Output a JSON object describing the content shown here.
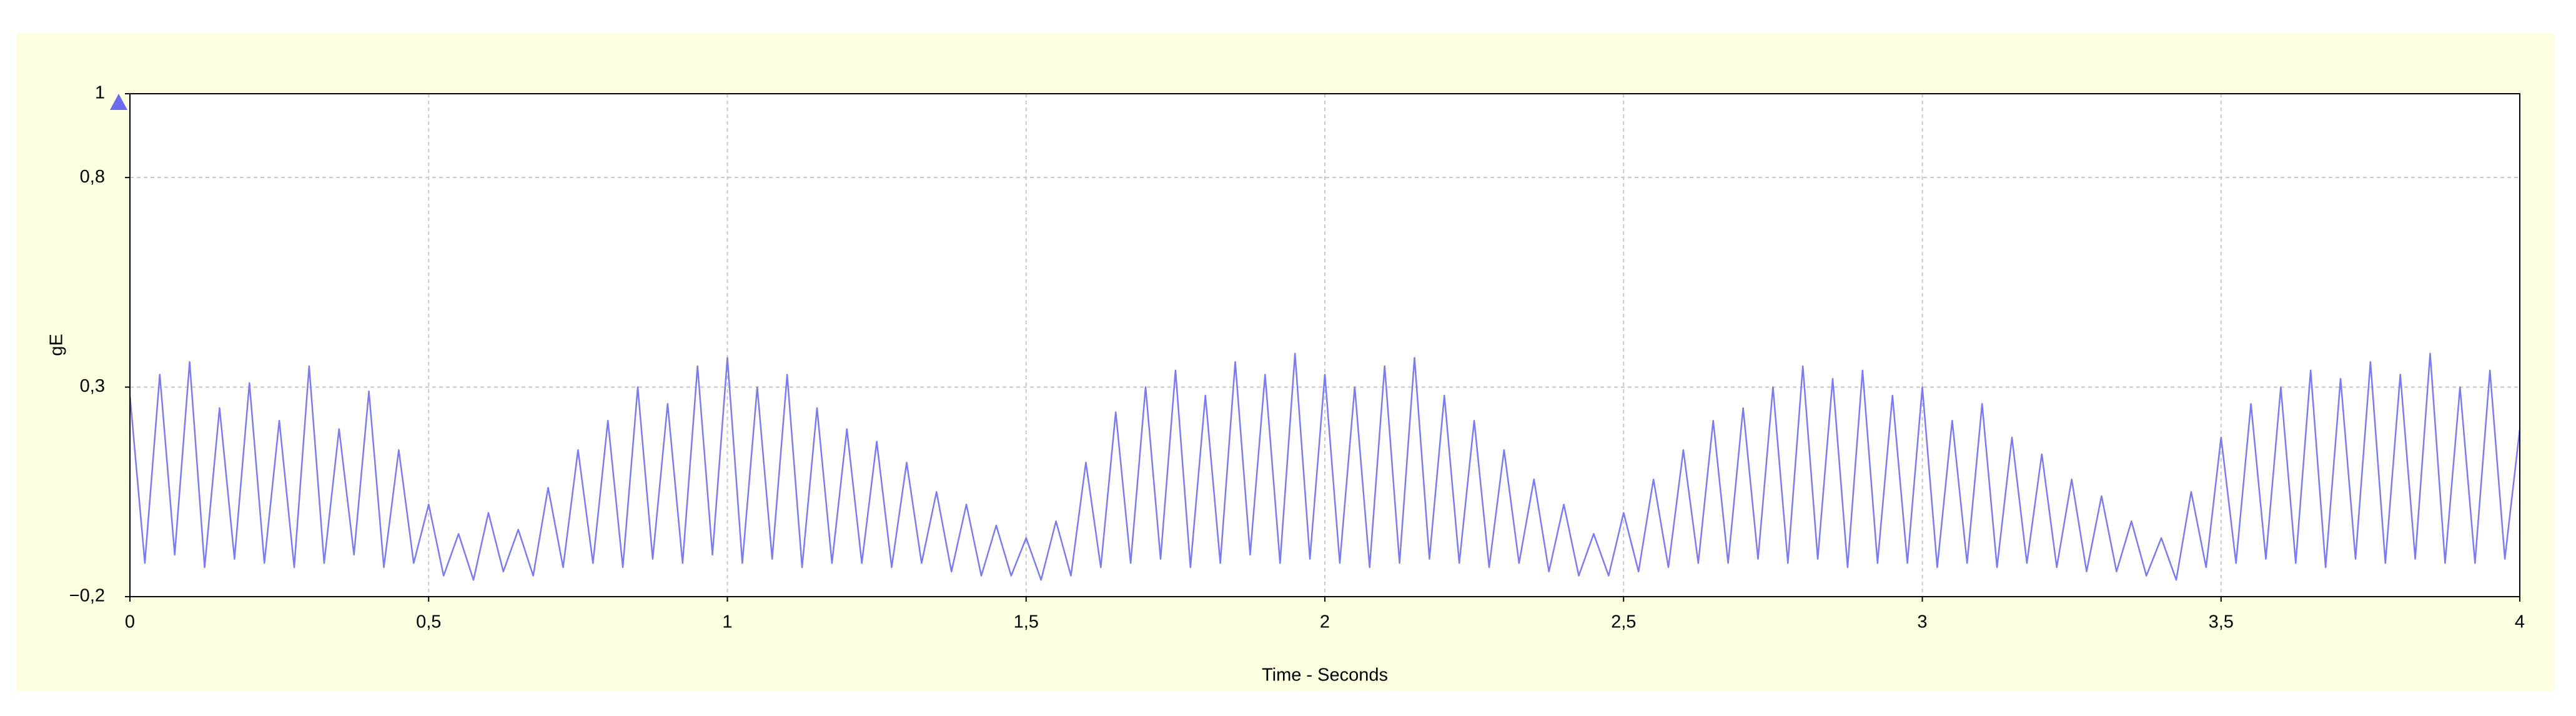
{
  "chart_data": {
    "type": "line",
    "x_label": "Time - Seconds",
    "y_label": "gE",
    "xlim": [
      0,
      4
    ],
    "ylim": [
      -0.2,
      1
    ],
    "xticks": [
      0,
      {
        "value": 0.5,
        "label": "0,5"
      },
      1,
      {
        "value": 1.5,
        "label": "1,5"
      },
      2,
      {
        "value": 2.5,
        "label": "2,5"
      },
      3,
      {
        "value": 3.5,
        "label": "3,5"
      },
      4
    ],
    "yticks": [
      {
        "value": -0.2,
        "label": "−0,2"
      },
      {
        "value": 0.3,
        "label": "0,3"
      },
      {
        "value": 0.8,
        "label": "0,8"
      },
      1
    ],
    "grid": true,
    "x": [
      0,
      0.025,
      0.05,
      0.075,
      0.1,
      0.125,
      0.15,
      0.175,
      0.2,
      0.225,
      0.25,
      0.275,
      0.3,
      0.325,
      0.35,
      0.375,
      0.4,
      0.425,
      0.45,
      0.475,
      0.5,
      0.525,
      0.55,
      0.575,
      0.6,
      0.625,
      0.65,
      0.675,
      0.7,
      0.725,
      0.75,
      0.775,
      0.8,
      0.825,
      0.85,
      0.875,
      0.9,
      0.925,
      0.95,
      0.975,
      1,
      1.025,
      1.05,
      1.075,
      1.1,
      1.125,
      1.15,
      1.175,
      1.2,
      1.225,
      1.25,
      1.275,
      1.3,
      1.325,
      1.35,
      1.375,
      1.4,
      1.425,
      1.45,
      1.475,
      1.5,
      1.525,
      1.55,
      1.575,
      1.6,
      1.625,
      1.65,
      1.675,
      1.7,
      1.725,
      1.75,
      1.775,
      1.8,
      1.825,
      1.85,
      1.875,
      1.9,
      1.925,
      1.95,
      1.975,
      2,
      2.025,
      2.05,
      2.075,
      2.1,
      2.125,
      2.15,
      2.175,
      2.2,
      2.225,
      2.25,
      2.275,
      2.3,
      2.325,
      2.35,
      2.375,
      2.4,
      2.425,
      2.45,
      2.475,
      2.5,
      2.525,
      2.55,
      2.575,
      2.6,
      2.625,
      2.65,
      2.675,
      2.7,
      2.725,
      2.75,
      2.775,
      2.8,
      2.825,
      2.85,
      2.875,
      2.9,
      2.925,
      2.95,
      2.975,
      3,
      3.025,
      3.05,
      3.075,
      3.1,
      3.125,
      3.15,
      3.175,
      3.2,
      3.225,
      3.25,
      3.275,
      3.3,
      3.325,
      3.35,
      3.375,
      3.4,
      3.425,
      3.45,
      3.475,
      3.5,
      3.525,
      3.55,
      3.575,
      3.6,
      3.625,
      3.65,
      3.675,
      3.7,
      3.725,
      3.75,
      3.775,
      3.8,
      3.825,
      3.85,
      3.875,
      3.9,
      3.925,
      3.95,
      3.975,
      4
    ],
    "series": [
      {
        "color": "#7b7bf0",
        "values": [
          0.28,
          -0.12,
          0.33,
          -0.1,
          0.36,
          -0.13,
          0.25,
          -0.11,
          0.31,
          -0.12,
          0.22,
          -0.13,
          0.35,
          -0.12,
          0.2,
          -0.1,
          0.29,
          -0.13,
          0.15,
          -0.12,
          0.02,
          -0.15,
          -0.05,
          -0.16,
          0.0,
          -0.14,
          -0.04,
          -0.15,
          0.06,
          -0.13,
          0.15,
          -0.12,
          0.22,
          -0.13,
          0.3,
          -0.11,
          0.26,
          -0.12,
          0.35,
          -0.1,
          0.37,
          -0.12,
          0.3,
          -0.11,
          0.33,
          -0.13,
          0.25,
          -0.12,
          0.2,
          -0.12,
          0.17,
          -0.13,
          0.12,
          -0.12,
          0.05,
          -0.14,
          0.02,
          -0.15,
          -0.03,
          -0.15,
          -0.06,
          -0.16,
          -0.02,
          -0.15,
          0.12,
          -0.13,
          0.24,
          -0.12,
          0.3,
          -0.11,
          0.34,
          -0.13,
          0.28,
          -0.12,
          0.36,
          -0.1,
          0.33,
          -0.12,
          0.38,
          -0.11,
          0.33,
          -0.12,
          0.3,
          -0.13,
          0.35,
          -0.12,
          0.37,
          -0.11,
          0.28,
          -0.12,
          0.22,
          -0.13,
          0.15,
          -0.12,
          0.08,
          -0.14,
          0.02,
          -0.15,
          -0.05,
          -0.15,
          0.0,
          -0.14,
          0.08,
          -0.13,
          0.15,
          -0.12,
          0.22,
          -0.12,
          0.25,
          -0.11,
          0.3,
          -0.12,
          0.35,
          -0.11,
          0.32,
          -0.13,
          0.34,
          -0.12,
          0.28,
          -0.12,
          0.3,
          -0.13,
          0.22,
          -0.12,
          0.26,
          -0.13,
          0.18,
          -0.12,
          0.14,
          -0.13,
          0.08,
          -0.14,
          0.04,
          -0.14,
          -0.02,
          -0.15,
          -0.06,
          -0.16,
          0.05,
          -0.13,
          0.18,
          -0.12,
          0.26,
          -0.11,
          0.3,
          -0.12,
          0.34,
          -0.13,
          0.32,
          -0.11,
          0.36,
          -0.12,
          0.33,
          -0.11,
          0.38,
          -0.12,
          0.3,
          -0.12,
          0.34,
          -0.11,
          0.2
        ]
      }
    ]
  }
}
